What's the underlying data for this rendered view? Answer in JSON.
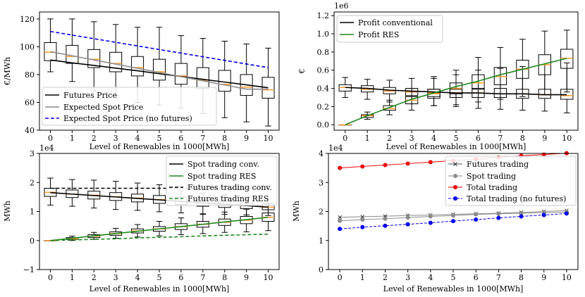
{
  "colors": {
    "black": "#000000",
    "gray": "#8c8c8c",
    "blue": "#0000ee",
    "green": "#1f8a1f",
    "red": "#ee0000",
    "orange": "#ff9a2e",
    "box": "#000000"
  },
  "chart_data": [
    {
      "id": "tl",
      "type": "line+boxplot",
      "xlabel": "Level of Renewables in 1000[MWh]",
      "ylabel": "€/MWh",
      "xlim": [
        -0.5,
        10.5
      ],
      "ylim": [
        40,
        125
      ],
      "xticks": [
        0,
        1,
        2,
        3,
        4,
        5,
        6,
        7,
        8,
        9,
        10
      ],
      "yticks": [
        40,
        60,
        80,
        100,
        120
      ],
      "ytick_labels": [
        "40",
        "60",
        "80",
        "100",
        "120"
      ],
      "legend_position": "lower-left",
      "x": [
        0,
        1,
        2,
        3,
        4,
        5,
        6,
        7,
        8,
        9,
        10
      ],
      "series": [
        {
          "name": "Futures Price",
          "color": "black",
          "dash": "solid",
          "values": [
            90.5,
            88.4,
            86.6,
            84.6,
            82.7,
            80.6,
            78.6,
            76.6,
            74.6,
            72.6,
            70.5
          ]
        },
        {
          "name": "Expected Spot Price",
          "color": "gray",
          "dash": "solid",
          "values": [
            96.5,
            93.5,
            90.5,
            87.5,
            84.5,
            81.5,
            78.5,
            75.5,
            72.5,
            69.5,
            69.5
          ]
        },
        {
          "name": "Expected Spot Price (no futures)",
          "color": "blue",
          "dash": "dashed",
          "values": [
            111,
            108.4,
            105.8,
            103.2,
            100.6,
            98,
            95.4,
            92.8,
            90.2,
            87.6,
            85
          ]
        }
      ],
      "boxes": [
        {
          "x": 0,
          "whislo": 82,
          "q1": 90,
          "med": 96,
          "q3": 103,
          "whishi": 120
        },
        {
          "x": 1,
          "whislo": 75,
          "q1": 88,
          "med": 93,
          "q3": 101,
          "whishi": 120
        },
        {
          "x": 2,
          "whislo": 68,
          "q1": 85,
          "med": 91,
          "q3": 98,
          "whishi": 118
        },
        {
          "x": 3,
          "whislo": 65,
          "q1": 82,
          "med": 88,
          "q3": 96,
          "whishi": 116
        },
        {
          "x": 4,
          "whislo": 60,
          "q1": 79,
          "med": 85,
          "q3": 93,
          "whishi": 114
        },
        {
          "x": 5,
          "whislo": 58,
          "q1": 76,
          "med": 82,
          "q3": 91,
          "whishi": 114
        },
        {
          "x": 6,
          "whislo": 56,
          "q1": 73,
          "med": 79,
          "q3": 88,
          "whishi": 108
        },
        {
          "x": 7,
          "whislo": 52,
          "q1": 70,
          "med": 76,
          "q3": 85,
          "whishi": 106
        },
        {
          "x": 8,
          "whislo": 49,
          "q1": 68,
          "med": 73,
          "q3": 83,
          "whishi": 104
        },
        {
          "x": 9,
          "whislo": 46,
          "q1": 65,
          "med": 71,
          "q3": 80,
          "whishi": 102
        },
        {
          "x": 10,
          "whislo": 43,
          "q1": 63,
          "med": 69,
          "q3": 78,
          "whishi": 99
        }
      ]
    },
    {
      "id": "tr",
      "type": "line+boxplot",
      "xlabel": "Level of Renewables in 1000[MWh]",
      "ylabel": "€",
      "scale_label": "1e6",
      "xlim": [
        -0.5,
        10.5
      ],
      "ylim": [
        -0.06,
        1.24
      ],
      "xticks": [
        0,
        1,
        2,
        3,
        4,
        5,
        6,
        7,
        8,
        9,
        10
      ],
      "yticks": [
        0,
        0.2,
        0.4,
        0.6,
        0.8,
        1.0,
        1.2
      ],
      "ytick_labels": [
        "0.0",
        "0.2",
        "0.4",
        "0.6",
        "0.8",
        "1.0",
        "1.2"
      ],
      "legend_position": "upper-left",
      "x": [
        0,
        1,
        2,
        3,
        4,
        5,
        6,
        7,
        8,
        9,
        10
      ],
      "series": [
        {
          "name": "Profit conventional",
          "color": "black",
          "dash": "solid",
          "values": [
            0.41,
            0.4,
            0.38,
            0.37,
            0.36,
            0.35,
            0.35,
            0.34,
            0.34,
            0.33,
            0.33
          ]
        },
        {
          "name": "Profit RES",
          "color": "green",
          "dash": "solid",
          "values": [
            0.0,
            0.1,
            0.19,
            0.28,
            0.35,
            0.42,
            0.48,
            0.55,
            0.61,
            0.67,
            0.73
          ]
        }
      ],
      "boxes": [
        {
          "x": 0,
          "whislo": 0.3,
          "q1": 0.37,
          "med": 0.41,
          "q3": 0.44,
          "whishi": 0.52
        },
        {
          "x": 1,
          "whislo": 0.28,
          "q1": 0.36,
          "med": 0.39,
          "q3": 0.43,
          "whishi": 0.5
        },
        {
          "x": 2,
          "whislo": 0.25,
          "q1": 0.34,
          "med": 0.37,
          "q3": 0.41,
          "whishi": 0.49
        },
        {
          "x": 3,
          "whislo": 0.23,
          "q1": 0.32,
          "med": 0.36,
          "q3": 0.4,
          "whishi": 0.51
        },
        {
          "x": 4,
          "whislo": 0.21,
          "q1": 0.31,
          "med": 0.35,
          "q3": 0.39,
          "whishi": 0.53
        },
        {
          "x": 5,
          "whislo": 0.2,
          "q1": 0.3,
          "med": 0.35,
          "q3": 0.39,
          "whishi": 0.55
        },
        {
          "x": 6,
          "whislo": 0.18,
          "q1": 0.3,
          "med": 0.35,
          "q3": 0.4,
          "whishi": 0.6
        },
        {
          "x": 7,
          "whislo": 0.17,
          "q1": 0.3,
          "med": 0.34,
          "q3": 0.4,
          "whishi": 0.62
        },
        {
          "x": 8,
          "whislo": 0.16,
          "q1": 0.29,
          "med": 0.34,
          "q3": 0.39,
          "whishi": 0.64
        },
        {
          "x": 9,
          "whislo": 0.15,
          "q1": 0.29,
          "med": 0.33,
          "q3": 0.39,
          "whishi": 0.66
        },
        {
          "x": 10,
          "whislo": 0.13,
          "q1": 0.28,
          "med": 0.32,
          "q3": 0.39,
          "whishi": 0.68
        },
        {
          "x": 0,
          "whislo": 0.0,
          "q1": 0.0,
          "med": 0.0,
          "q3": 0.0,
          "whishi": 0.0
        },
        {
          "x": 1,
          "whislo": 0.06,
          "q1": 0.08,
          "med": 0.1,
          "q3": 0.11,
          "whishi": 0.14
        },
        {
          "x": 2,
          "whislo": 0.11,
          "q1": 0.16,
          "med": 0.18,
          "q3": 0.21,
          "whishi": 0.27
        },
        {
          "x": 3,
          "whislo": 0.16,
          "q1": 0.23,
          "med": 0.27,
          "q3": 0.31,
          "whishi": 0.4
        },
        {
          "x": 4,
          "whislo": 0.21,
          "q1": 0.29,
          "med": 0.34,
          "q3": 0.39,
          "whishi": 0.51
        },
        {
          "x": 5,
          "whislo": 0.22,
          "q1": 0.34,
          "med": 0.4,
          "q3": 0.46,
          "whishi": 0.6
        },
        {
          "x": 6,
          "whislo": 0.25,
          "q1": 0.39,
          "med": 0.46,
          "q3": 0.55,
          "whishi": 0.74
        },
        {
          "x": 7,
          "whislo": 0.28,
          "q1": 0.44,
          "med": 0.53,
          "q3": 0.63,
          "whishi": 0.85
        },
        {
          "x": 8,
          "whislo": 0.31,
          "q1": 0.51,
          "med": 0.61,
          "q3": 0.71,
          "whishi": 0.94
        },
        {
          "x": 9,
          "whislo": 0.33,
          "q1": 0.55,
          "med": 0.66,
          "q3": 0.77,
          "whishi": 1.03
        },
        {
          "x": 10,
          "whislo": 0.36,
          "q1": 0.62,
          "med": 0.73,
          "q3": 0.83,
          "whishi": 1.04
        }
      ]
    },
    {
      "id": "bl",
      "type": "line+boxplot",
      "xlabel": "Level of Renewables in 1000[MWh]",
      "ylabel": "MWh",
      "scale_label": "1e4",
      "xlim": [
        -0.5,
        10.5
      ],
      "ylim": [
        -1,
        3
      ],
      "xticks": [
        0,
        1,
        2,
        3,
        4,
        5,
        6,
        7,
        8,
        9,
        10
      ],
      "yticks": [
        -1,
        0,
        1,
        2,
        3
      ],
      "ytick_labels": [
        "−1",
        "0",
        "1",
        "2",
        "3"
      ],
      "legend_position": "upper-right",
      "x": [
        0,
        1,
        2,
        3,
        4,
        5,
        6,
        7,
        8,
        9,
        10
      ],
      "series": [
        {
          "name": "Spot trading conv.",
          "color": "black",
          "dash": "solid",
          "values": [
            1.65,
            1.6,
            1.55,
            1.5,
            1.45,
            1.4,
            1.35,
            1.3,
            1.25,
            1.2,
            1.15
          ]
        },
        {
          "name": "Spot trading RES",
          "color": "green",
          "dash": "solid",
          "values": [
            0.0,
            0.08,
            0.16,
            0.24,
            0.32,
            0.4,
            0.48,
            0.56,
            0.64,
            0.72,
            0.8
          ]
        },
        {
          "name": "Futures trading conv.",
          "color": "black",
          "dash": "dashed",
          "values": [
            1.8,
            1.8,
            1.8,
            1.8,
            1.8,
            1.8,
            1.8,
            1.8,
            1.8,
            1.8,
            1.8
          ]
        },
        {
          "name": "Futures trading RES",
          "color": "green",
          "dash": "dashed",
          "values": [
            0.0,
            0.02,
            0.04,
            0.06,
            0.09,
            0.11,
            0.13,
            0.16,
            0.18,
            0.2,
            0.22
          ]
        }
      ],
      "boxes": [
        {
          "x": 0,
          "whislo": 1.22,
          "q1": 1.52,
          "med": 1.66,
          "q3": 1.8,
          "whishi": 2.15
        },
        {
          "x": 1,
          "whislo": 1.18,
          "q1": 1.48,
          "med": 1.6,
          "q3": 1.74,
          "whishi": 2.1
        },
        {
          "x": 2,
          "whislo": 1.12,
          "q1": 1.43,
          "med": 1.56,
          "q3": 1.7,
          "whishi": 2.08
        },
        {
          "x": 3,
          "whislo": 1.07,
          "q1": 1.38,
          "med": 1.51,
          "q3": 1.65,
          "whishi": 2.04
        },
        {
          "x": 4,
          "whislo": 1.04,
          "q1": 1.33,
          "med": 1.46,
          "q3": 1.6,
          "whishi": 1.98
        },
        {
          "x": 5,
          "whislo": 0.99,
          "q1": 1.28,
          "med": 1.41,
          "q3": 1.55,
          "whishi": 1.92
        },
        {
          "x": 0,
          "whislo": 0.0,
          "q1": 0.0,
          "med": 0.0,
          "q3": 0.0,
          "whishi": 0.0
        },
        {
          "x": 1,
          "whislo": 0.0,
          "q1": 0.04,
          "med": 0.06,
          "q3": 0.1,
          "whishi": 0.15
        },
        {
          "x": 2,
          "whislo": 0.04,
          "q1": 0.1,
          "med": 0.15,
          "q3": 0.2,
          "whishi": 0.28
        },
        {
          "x": 3,
          "whislo": 0.08,
          "q1": 0.18,
          "med": 0.24,
          "q3": 0.3,
          "whishi": 0.42
        },
        {
          "x": 4,
          "whislo": 0.12,
          "q1": 0.26,
          "med": 0.33,
          "q3": 0.4,
          "whishi": 0.55
        },
        {
          "x": 5,
          "whislo": 0.16,
          "q1": 0.32,
          "med": 0.4,
          "q3": 0.48,
          "whishi": 0.66
        },
        {
          "x": 6,
          "whislo": 0.2,
          "q1": 0.38,
          "med": 0.48,
          "q3": 0.58,
          "whishi": 0.78
        },
        {
          "x": 7,
          "whislo": 0.24,
          "q1": 0.46,
          "med": 0.56,
          "q3": 0.66,
          "whishi": 0.9
        },
        {
          "x": 8,
          "whislo": 0.28,
          "q1": 0.52,
          "med": 0.63,
          "q3": 0.74,
          "whishi": 0.98
        },
        {
          "x": 9,
          "whislo": 0.3,
          "q1": 0.58,
          "med": 0.7,
          "q3": 0.83,
          "whishi": 1.08
        },
        {
          "x": 10,
          "whislo": 0.34,
          "q1": 0.66,
          "med": 0.8,
          "q3": 0.95,
          "whishi": 1.28
        },
        {
          "x": 6,
          "whislo": 0.95,
          "q1": 1.24,
          "med": 1.35,
          "q3": 1.48,
          "whishi": 1.72
        },
        {
          "x": 7,
          "whislo": 0.92,
          "q1": 1.18,
          "med": 1.3,
          "q3": 1.42,
          "whishi": 1.64
        },
        {
          "x": 8,
          "whislo": 0.9,
          "q1": 1.14,
          "med": 1.25,
          "q3": 1.36,
          "whishi": 1.58
        },
        {
          "x": 9,
          "whislo": 0.88,
          "q1": 1.1,
          "med": 1.2,
          "q3": 1.3,
          "whishi": 1.5
        },
        {
          "x": 10,
          "whislo": 0.86,
          "q1": 1.06,
          "med": 1.15,
          "q3": 1.26,
          "whishi": 1.45
        }
      ]
    },
    {
      "id": "br",
      "type": "line",
      "xlabel": "Level of Renewables in 1000[MWh]",
      "ylabel": "MWh",
      "scale_label": "1e4",
      "xlim": [
        -0.5,
        10.5
      ],
      "ylim": [
        0,
        4
      ],
      "xticks": [
        0,
        1,
        2,
        3,
        4,
        5,
        6,
        7,
        8,
        9,
        10
      ],
      "yticks": [
        0,
        1,
        2,
        3,
        4
      ],
      "ytick_labels": [
        "0",
        "1",
        "2",
        "3",
        "4"
      ],
      "legend_position": "upper-right",
      "x": [
        0,
        1,
        2,
        3,
        4,
        5,
        6,
        7,
        8,
        9,
        10
      ],
      "series": [
        {
          "name": "Futures trading",
          "color": "gray",
          "dash": "solid",
          "marker": "x",
          "values": [
            1.8,
            1.82,
            1.84,
            1.86,
            1.88,
            1.9,
            1.92,
            1.94,
            1.97,
            2.0,
            2.03
          ]
        },
        {
          "name": "Spot trading",
          "color": "gray",
          "dash": "solid",
          "marker": "dot",
          "values": [
            1.68,
            1.72,
            1.75,
            1.79,
            1.83,
            1.86,
            1.9,
            1.92,
            1.94,
            1.96,
            1.98
          ]
        },
        {
          "name": "Total trading",
          "color": "red",
          "dash": "solid",
          "marker": "dot",
          "values": [
            3.5,
            3.55,
            3.6,
            3.65,
            3.7,
            3.75,
            3.8,
            3.86,
            3.92,
            3.96,
            4.01
          ]
        },
        {
          "name": "Total trading (no futures)",
          "color": "blue",
          "dash": "dashed",
          "marker": "dot",
          "values": [
            1.4,
            1.46,
            1.51,
            1.56,
            1.61,
            1.67,
            1.72,
            1.78,
            1.83,
            1.88,
            1.93
          ]
        }
      ],
      "boxes": []
    }
  ]
}
